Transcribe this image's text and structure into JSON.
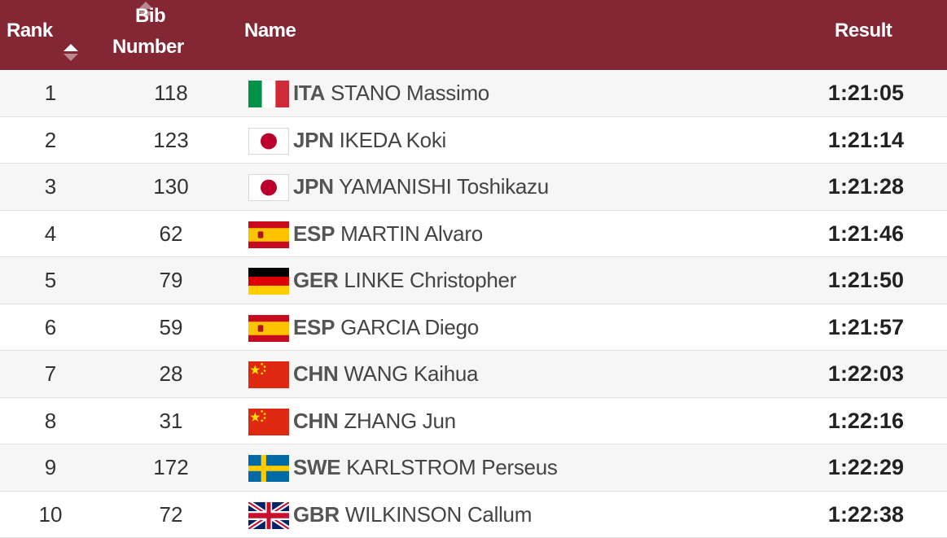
{
  "header": {
    "rank_label": "Rank",
    "bib_label_line1": "Bib",
    "bib_label_line2": "Number",
    "name_label": "Name",
    "result_label": "Result",
    "rank_sort_icon": "sort-ascending-icon",
    "bib_sort_icon": "sort-icon"
  },
  "colors": {
    "header_bg": "#822733",
    "row_alt_bg": "#f6f6f6"
  },
  "rows": [
    {
      "rank": "1",
      "bib": "118",
      "noc": "ITA",
      "name": "STANO Massimo",
      "result": "1:21:05",
      "flag": "italy-flag-icon"
    },
    {
      "rank": "2",
      "bib": "123",
      "noc": "JPN",
      "name": "IKEDA Koki",
      "result": "1:21:14",
      "flag": "japan-flag-icon"
    },
    {
      "rank": "3",
      "bib": "130",
      "noc": "JPN",
      "name": "YAMANISHI Toshikazu",
      "result": "1:21:28",
      "flag": "japan-flag-icon"
    },
    {
      "rank": "4",
      "bib": "62",
      "noc": "ESP",
      "name": "MARTIN Alvaro",
      "result": "1:21:46",
      "flag": "spain-flag-icon"
    },
    {
      "rank": "5",
      "bib": "79",
      "noc": "GER",
      "name": "LINKE Christopher",
      "result": "1:21:50",
      "flag": "germany-flag-icon"
    },
    {
      "rank": "6",
      "bib": "59",
      "noc": "ESP",
      "name": "GARCIA Diego",
      "result": "1:21:57",
      "flag": "spain-flag-icon"
    },
    {
      "rank": "7",
      "bib": "28",
      "noc": "CHN",
      "name": "WANG Kaihua",
      "result": "1:22:03",
      "flag": "china-flag-icon"
    },
    {
      "rank": "8",
      "bib": "31",
      "noc": "CHN",
      "name": "ZHANG Jun",
      "result": "1:22:16",
      "flag": "china-flag-icon"
    },
    {
      "rank": "9",
      "bib": "172",
      "noc": "SWE",
      "name": "KARLSTROM Perseus",
      "result": "1:22:29",
      "flag": "sweden-flag-icon"
    },
    {
      "rank": "10",
      "bib": "72",
      "noc": "GBR",
      "name": "WILKINSON Callum",
      "result": "1:22:38",
      "flag": "great-britain-flag-icon"
    }
  ]
}
